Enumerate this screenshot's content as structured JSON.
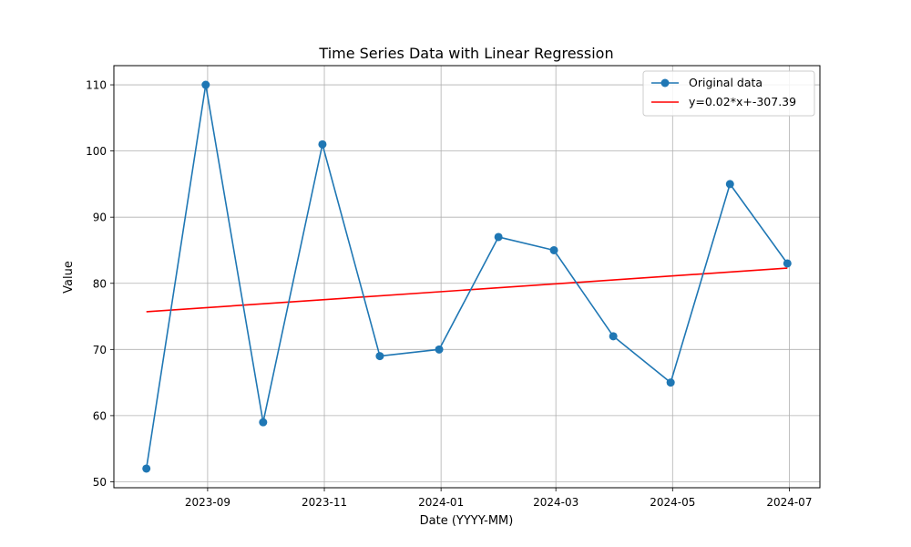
{
  "chart_data": {
    "type": "line",
    "title": "Time Series Data with Linear Regression",
    "xlabel": "Date (YYYY-MM)",
    "ylabel": "Value",
    "x_dates": [
      "2023-07-31",
      "2023-08-31",
      "2023-09-30",
      "2023-10-31",
      "2023-11-30",
      "2023-12-31",
      "2024-01-31",
      "2024-02-29",
      "2024-03-31",
      "2024-04-30",
      "2024-05-31",
      "2024-06-30"
    ],
    "series": [
      {
        "name": "Original data",
        "values": [
          52,
          110,
          59,
          101,
          69,
          70,
          87,
          85,
          72,
          65,
          95,
          83
        ],
        "color": "#1f77b4",
        "marker": "circle"
      },
      {
        "name": "y=0.02*x+-307.39",
        "kind": "regression",
        "start": {
          "x": "2023-07-31",
          "y": 75.7
        },
        "end": {
          "x": "2024-06-30",
          "y": 82.3
        },
        "color": "#ff0000"
      }
    ],
    "xticks": [
      "2023-09",
      "2023-11",
      "2024-01",
      "2024-03",
      "2024-05",
      "2024-07"
    ],
    "xlim": [
      "2023-07-14",
      "2024-07-17"
    ],
    "yticks": [
      50,
      60,
      70,
      80,
      90,
      100,
      110
    ],
    "ylim": [
      49.1,
      112.9
    ],
    "grid": true,
    "legend_position": "top-right"
  }
}
